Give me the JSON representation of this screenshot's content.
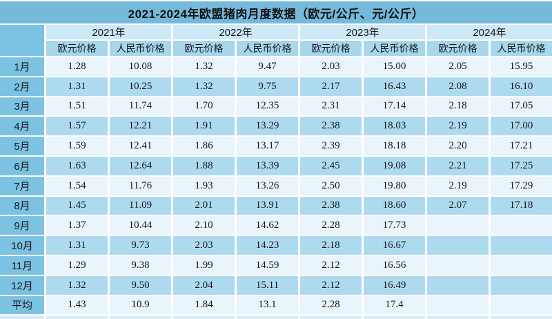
{
  "title": "2021-2024年欧盟猪肉月度数据（欧元/公斤、元/公斤）",
  "colors": {
    "title_bar": "#75b9db",
    "label_column": "#7cc2e3",
    "year_header": "#cde8f6",
    "sub_header": "#a7d6ed",
    "row_light": "#e9f4fb",
    "row_blue": "#aedaef",
    "grid_lines": "#ffffff"
  },
  "chart_data": {
    "type": "table",
    "title": "2021-2024年欧盟猪肉月度数据（欧元/公斤、元/公斤）",
    "column_groups": [
      "2021年",
      "2022年",
      "2023年",
      "2024年"
    ],
    "sub_columns": [
      "欧元价格",
      "人民币价格"
    ],
    "rows": [
      {
        "label": "1月",
        "values": [
          "1.28",
          "10.08",
          "1.32",
          "9.47",
          "2.03",
          "15.00",
          "2.05",
          "15.95"
        ]
      },
      {
        "label": "2月",
        "values": [
          "1.31",
          "10.25",
          "1.32",
          "9.75",
          "2.17",
          "16.43",
          "2.08",
          "16.10"
        ]
      },
      {
        "label": "3月",
        "values": [
          "1.51",
          "11.74",
          "1.70",
          "12.35",
          "2.31",
          "17.14",
          "2.18",
          "17.05"
        ]
      },
      {
        "label": "4月",
        "values": [
          "1.57",
          "12.21",
          "1.91",
          "13.29",
          "2.38",
          "18.03",
          "2.19",
          "17.00"
        ]
      },
      {
        "label": "5月",
        "values": [
          "1.59",
          "12.41",
          "1.86",
          "13.17",
          "2.39",
          "18.18",
          "2.20",
          "17.21"
        ]
      },
      {
        "label": "6月",
        "values": [
          "1.63",
          "12.64",
          "1.88",
          "13.39",
          "2.45",
          "19.08",
          "2.21",
          "17.25"
        ]
      },
      {
        "label": "7月",
        "values": [
          "1.54",
          "11.76",
          "1.93",
          "13.26",
          "2.50",
          "19.80",
          "2.19",
          "17.29"
        ]
      },
      {
        "label": "8月",
        "values": [
          "1.45",
          "11.09",
          "2.01",
          "13.91",
          "2.38",
          "18.60",
          "2.07",
          "17.18"
        ]
      },
      {
        "label": "9月",
        "values": [
          "1.37",
          "10.44",
          "2.10",
          "14.62",
          "2.28",
          "17.73",
          "",
          ""
        ]
      },
      {
        "label": "10月",
        "values": [
          "1.31",
          "9.73",
          "2.03",
          "14.23",
          "2.18",
          "16.67",
          "",
          ""
        ]
      },
      {
        "label": "11月",
        "values": [
          "1.29",
          "9.38",
          "1.99",
          "14.59",
          "2.12",
          "16.56",
          "",
          ""
        ]
      },
      {
        "label": "12月",
        "values": [
          "1.32",
          "9.50",
          "2.04",
          "15.11",
          "2.12",
          "16.49",
          "",
          ""
        ]
      },
      {
        "label": "平均",
        "values": [
          "1.43",
          "10.9",
          "1.84",
          "13.1",
          "2.28",
          "17.4",
          "",
          ""
        ]
      }
    ]
  }
}
